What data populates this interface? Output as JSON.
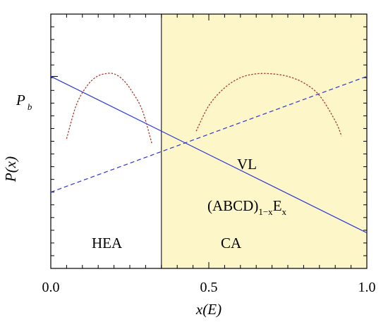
{
  "chart_data": {
    "type": "line",
    "title": "",
    "xlabel": "x(E)",
    "ylabel": "P(x)",
    "xlim": [
      0.0,
      1.0
    ],
    "ylim": [
      0.0,
      1.0
    ],
    "x_ticks": [
      0.0,
      0.5,
      1.0
    ],
    "x_tick_labels": [
      "0.0",
      "0.5",
      "1.0"
    ],
    "y_tick_labels": [
      {
        "y": 0.755,
        "text": "P",
        "sub": "b"
      }
    ],
    "grid": false,
    "legend": "none",
    "series": [
      {
        "style": "solid",
        "color": "#2b36d8",
        "x": [
          0.0,
          1.0
        ],
        "y": [
          0.755,
          0.14
        ]
      },
      {
        "style": "dashed",
        "color": "#2b36d8",
        "x": [
          0.0,
          1.0
        ],
        "y": [
          0.3,
          0.755
        ]
      },
      {
        "style": "dotted",
        "color": "#a83a2a",
        "x": [
          0.05,
          0.08,
          0.11,
          0.14,
          0.17,
          0.2,
          0.23,
          0.26,
          0.29,
          0.32
        ],
        "y": [
          0.51,
          0.64,
          0.71,
          0.75,
          0.765,
          0.765,
          0.74,
          0.69,
          0.62,
          0.49
        ]
      },
      {
        "style": "dotted",
        "color": "#a83a2a",
        "x": [
          0.46,
          0.5,
          0.55,
          0.6,
          0.65,
          0.7,
          0.75,
          0.8,
          0.85,
          0.9,
          0.92
        ],
        "y": [
          0.54,
          0.64,
          0.71,
          0.75,
          0.765,
          0.765,
          0.755,
          0.73,
          0.68,
          0.58,
          0.52
        ]
      }
    ],
    "regions": [
      {
        "label": "HEA",
        "x0": 0.0,
        "x1": 0.35,
        "fill": "#ffffff"
      },
      {
        "label": "CA",
        "x0": 0.35,
        "x1": 1.0,
        "fill": "#fdf6c8"
      }
    ],
    "region_boundary_x": 0.35,
    "annotations": [
      {
        "text": "VL",
        "x": 0.62,
        "y": 0.48
      },
      {
        "text": "(ABCD)",
        "sub": "1−x",
        "text2": "E",
        "sub2": "x",
        "x": 0.5,
        "y": 0.23
      },
      {
        "text": "HEA",
        "x": 0.19,
        "y": 0.1
      },
      {
        "text": "CA",
        "x": 0.58,
        "y": 0.1
      }
    ]
  }
}
